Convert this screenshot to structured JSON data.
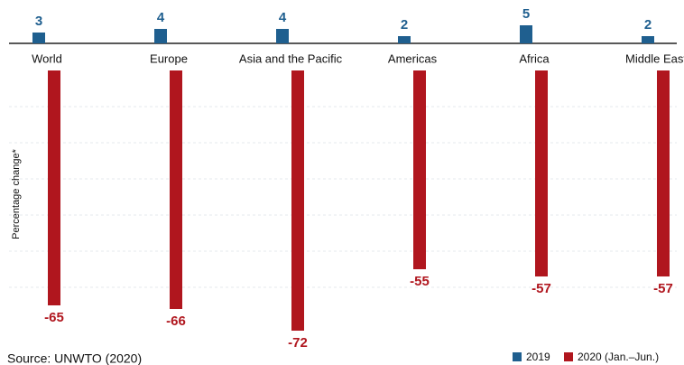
{
  "chart_data": {
    "type": "bar",
    "y_label": "Percentage change*",
    "source": "Source: UNWTO (2020)",
    "categories": [
      "World",
      "Europe",
      "Asia and the Pacific",
      "Americas",
      "Africa",
      "Middle East"
    ],
    "series": [
      {
        "name": "2019",
        "color": "#1f5f8f",
        "values": [
          3,
          4,
          4,
          2,
          5,
          2
        ]
      },
      {
        "name": "2020 (Jan.–Jun.)",
        "color": "#b0161e",
        "values": [
          -65,
          -66,
          -72,
          -55,
          -57,
          -57
        ]
      }
    ],
    "legend": "bottom-right"
  }
}
